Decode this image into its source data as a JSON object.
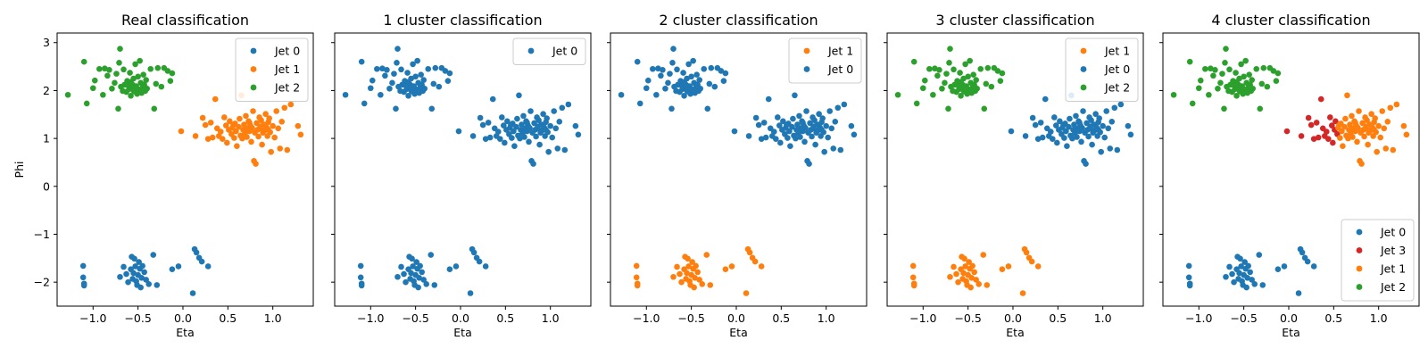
{
  "colors": {
    "C0": "#1f77b4",
    "C1": "#ff7f0e",
    "C2": "#2ca02c",
    "C3": "#d62728"
  },
  "chart_data": [
    {
      "type": "scatter",
      "title": "Real classification",
      "xlabel": "Eta",
      "ylabel": "Phi",
      "xlim": [
        -1.4,
        1.45
      ],
      "ylim": [
        -2.5,
        3.2
      ],
      "xticks": [
        -1.0,
        -0.5,
        0.0,
        0.5,
        1.0
      ],
      "yticks": [
        -2,
        -1,
        0,
        1,
        2,
        3
      ],
      "legend_position": "upper-right",
      "series": [
        {
          "name": "Jet 0",
          "color": "#1f77b4",
          "cluster": "bottom"
        },
        {
          "name": "Jet 1",
          "color": "#ff7f0e",
          "cluster": "right"
        },
        {
          "name": "Jet 2",
          "color": "#2ca02c",
          "cluster": "left"
        }
      ]
    },
    {
      "type": "scatter",
      "title": "1 cluster classification",
      "xlabel": "Eta",
      "ylabel": "",
      "xlim": [
        -1.4,
        1.45
      ],
      "ylim": [
        -2.5,
        3.2
      ],
      "xticks": [
        -1.0,
        -0.5,
        0.0,
        0.5,
        1.0
      ],
      "yticks": [
        -2,
        -1,
        0,
        1,
        2,
        3
      ],
      "legend_position": "upper-right",
      "series": [
        {
          "name": "Jet 0",
          "color": "#1f77b4",
          "cluster": [
            "left",
            "right",
            "bottom"
          ]
        }
      ]
    },
    {
      "type": "scatter",
      "title": "2 cluster classification",
      "xlabel": "Eta",
      "ylabel": "",
      "xlim": [
        -1.4,
        1.45
      ],
      "ylim": [
        -2.5,
        3.2
      ],
      "xticks": [
        -1.0,
        -0.5,
        0.0,
        0.5,
        1.0
      ],
      "yticks": [
        -2,
        -1,
        0,
        1,
        2,
        3
      ],
      "legend_position": "upper-right",
      "series": [
        {
          "name": "Jet 1",
          "color": "#ff7f0e",
          "cluster": "bottom"
        },
        {
          "name": "Jet 0",
          "color": "#1f77b4",
          "cluster": [
            "left",
            "right"
          ]
        }
      ]
    },
    {
      "type": "scatter",
      "title": "3 cluster classification",
      "xlabel": "Eta",
      "ylabel": "",
      "xlim": [
        -1.4,
        1.45
      ],
      "ylim": [
        -2.5,
        3.2
      ],
      "xticks": [
        -1.0,
        -0.5,
        0.0,
        0.5,
        1.0
      ],
      "yticks": [
        -2,
        -1,
        0,
        1,
        2,
        3
      ],
      "legend_position": "upper-right",
      "series": [
        {
          "name": "Jet 1",
          "color": "#ff7f0e",
          "cluster": "bottom"
        },
        {
          "name": "Jet 0",
          "color": "#1f77b4",
          "cluster": "right"
        },
        {
          "name": "Jet 2",
          "color": "#2ca02c",
          "cluster": "left"
        }
      ]
    },
    {
      "type": "scatter",
      "title": "4 cluster classification",
      "xlabel": "Eta",
      "ylabel": "",
      "xlim": [
        -1.4,
        1.45
      ],
      "ylim": [
        -2.5,
        3.2
      ],
      "xticks": [
        -1.0,
        -0.5,
        0.0,
        0.5,
        1.0
      ],
      "yticks": [
        -2,
        -1,
        0,
        1,
        2,
        3
      ],
      "legend_position": "lower-right",
      "series": [
        {
          "name": "Jet 0",
          "color": "#1f77b4",
          "cluster": "bottom"
        },
        {
          "name": "Jet 3",
          "color": "#d62728",
          "cluster": "right-left-half"
        },
        {
          "name": "Jet 1",
          "color": "#ff7f0e",
          "cluster": "right-right-half"
        },
        {
          "name": "Jet 2",
          "color": "#2ca02c",
          "cluster": "left"
        }
      ]
    }
  ],
  "points": {
    "left": [
      [
        -1.28,
        1.91
      ],
      [
        -1.1,
        2.6
      ],
      [
        -1.07,
        1.73
      ],
      [
        -1.0,
        2.05
      ],
      [
        -0.98,
        2.21
      ],
      [
        -0.93,
        2.45
      ],
      [
        -0.89,
        1.91
      ],
      [
        -0.87,
        2.46
      ],
      [
        -0.84,
        2.31
      ],
      [
        -0.82,
        2.43
      ],
      [
        -0.79,
        2.04
      ],
      [
        -0.76,
        2.16
      ],
      [
        -0.74,
        2.35
      ],
      [
        -0.72,
        1.62
      ],
      [
        -0.71,
        2.58
      ],
      [
        -0.7,
        2.87
      ],
      [
        -0.69,
        2.08
      ],
      [
        -0.66,
        2.44
      ],
      [
        -0.65,
        2.12
      ],
      [
        -0.63,
        1.97
      ],
      [
        -0.62,
        2.2
      ],
      [
        -0.6,
        2.03
      ],
      [
        -0.59,
        2.37
      ],
      [
        -0.58,
        1.89
      ],
      [
        -0.57,
        2.06
      ],
      [
        -0.56,
        2.12
      ],
      [
        -0.55,
        2.25
      ],
      [
        -0.54,
        1.98
      ],
      [
        -0.53,
        2.55
      ],
      [
        -0.52,
        2.09
      ],
      [
        -0.51,
        1.93
      ],
      [
        -0.5,
        2.29
      ],
      [
        -0.49,
        2.02
      ],
      [
        -0.48,
        2.62
      ],
      [
        -0.47,
        2.16
      ],
      [
        -0.46,
        1.95
      ],
      [
        -0.45,
        2.06
      ],
      [
        -0.44,
        2.33
      ],
      [
        -0.43,
        2.12
      ],
      [
        -0.42,
        1.99
      ],
      [
        -0.4,
        2.04
      ],
      [
        -0.36,
        2.45
      ],
      [
        -0.32,
        1.62
      ],
      [
        -0.3,
        2.14
      ],
      [
        -0.28,
        2.47
      ],
      [
        -0.24,
        2.08
      ],
      [
        -0.21,
        2.47
      ],
      [
        -0.17,
        2.41
      ],
      [
        -0.14,
        2.2
      ],
      [
        -0.12,
        2.36
      ],
      [
        -0.55,
        2.0
      ],
      [
        -0.61,
        2.11
      ],
      [
        -0.67,
        1.99
      ],
      [
        -0.41,
        2.22
      ],
      [
        -0.58,
        2.18
      ]
    ],
    "right": [
      [
        -0.02,
        1.15
      ],
      [
        0.14,
        1.05
      ],
      [
        0.22,
        1.43
      ],
      [
        0.25,
        1.28
      ],
      [
        0.28,
        0.99
      ],
      [
        0.31,
        1.33
      ],
      [
        0.33,
        1.02
      ],
      [
        0.36,
        1.82
      ],
      [
        0.38,
        1.21
      ],
      [
        0.4,
        1.05
      ],
      [
        0.42,
        1.14
      ],
      [
        0.44,
        0.99
      ],
      [
        0.46,
        1.44
      ],
      [
        0.48,
        1.27
      ],
      [
        0.49,
        0.91
      ],
      [
        0.51,
        1.18
      ],
      [
        0.52,
        1.36
      ],
      [
        0.54,
        1.09
      ],
      [
        0.55,
        1.22
      ],
      [
        0.57,
        1.01
      ],
      [
        0.58,
        1.31
      ],
      [
        0.59,
        1.15
      ],
      [
        0.6,
        0.84
      ],
      [
        0.62,
        1.24
      ],
      [
        0.63,
        1.41
      ],
      [
        0.64,
        1.06
      ],
      [
        0.65,
        1.9
      ],
      [
        0.67,
        1.18
      ],
      [
        0.68,
        1.29
      ],
      [
        0.69,
        1.11
      ],
      [
        0.7,
        1.47
      ],
      [
        0.71,
        1.03
      ],
      [
        0.72,
        1.21
      ],
      [
        0.73,
        1.36
      ],
      [
        0.74,
        1.15
      ],
      [
        0.75,
        1.27
      ],
      [
        0.76,
        0.93
      ],
      [
        0.77,
        1.22
      ],
      [
        0.78,
        1.57
      ],
      [
        0.79,
        0.53
      ],
      [
        0.8,
        1.12
      ],
      [
        0.81,
        0.47
      ],
      [
        0.82,
        1.32
      ],
      [
        0.83,
        1.18
      ],
      [
        0.84,
        1.04
      ],
      [
        0.85,
        1.44
      ],
      [
        0.86,
        1.25
      ],
      [
        0.87,
        1.38
      ],
      [
        0.88,
        0.87
      ],
      [
        0.89,
        1.12
      ],
      [
        0.9,
        1.29
      ],
      [
        0.91,
        1.17
      ],
      [
        0.92,
        1.51
      ],
      [
        0.93,
        1.23
      ],
      [
        0.94,
        1.05
      ],
      [
        0.95,
        1.34
      ],
      [
        0.96,
        1.42
      ],
      [
        0.97,
        1.13
      ],
      [
        0.98,
        0.72
      ],
      [
        1.0,
        1.26
      ],
      [
        1.02,
        1.02
      ],
      [
        1.04,
        1.57
      ],
      [
        1.06,
        1.21
      ],
      [
        1.08,
        0.79
      ],
      [
        1.1,
        1.35
      ],
      [
        1.13,
        1.64
      ],
      [
        1.16,
        0.76
      ],
      [
        1.2,
        1.71
      ],
      [
        1.28,
        1.26
      ],
      [
        1.31,
        1.08
      ],
      [
        0.66,
        1.0
      ],
      [
        0.56,
        1.28
      ],
      [
        0.86,
        1.21
      ],
      [
        0.74,
        1.33
      ],
      [
        0.95,
        1.18
      ]
    ],
    "bottom": [
      [
        -1.11,
        -1.66
      ],
      [
        -1.11,
        -1.9
      ],
      [
        -1.1,
        -2.03
      ],
      [
        -1.1,
        -2.07
      ],
      [
        -0.7,
        -1.89
      ],
      [
        -0.66,
        -1.68
      ],
      [
        -0.63,
        -1.83
      ],
      [
        -0.61,
        -2.0
      ],
      [
        -0.58,
        -1.73
      ],
      [
        -0.57,
        -1.47
      ],
      [
        -0.56,
        -1.93
      ],
      [
        -0.55,
        -1.81
      ],
      [
        -0.54,
        -1.51
      ],
      [
        -0.53,
        -1.67
      ],
      [
        -0.52,
        -1.98
      ],
      [
        -0.51,
        -2.06
      ],
      [
        -0.5,
        -1.85
      ],
      [
        -0.49,
        -1.58
      ],
      [
        -0.48,
        -1.72
      ],
      [
        -0.47,
        -2.11
      ],
      [
        -0.46,
        -1.91
      ],
      [
        -0.45,
        -1.66
      ],
      [
        -0.43,
        -1.79
      ],
      [
        -0.41,
        -1.95
      ],
      [
        -0.38,
        -2.04
      ],
      [
        -0.33,
        -1.43
      ],
      [
        -0.29,
        -2.06
      ],
      [
        -0.12,
        -1.73
      ],
      [
        -0.05,
        -1.67
      ],
      [
        0.11,
        -2.23
      ],
      [
        0.13,
        -1.31
      ],
      [
        0.15,
        -1.38
      ],
      [
        0.18,
        -1.49
      ],
      [
        0.21,
        -1.57
      ],
      [
        0.28,
        -1.67
      ]
    ]
  }
}
